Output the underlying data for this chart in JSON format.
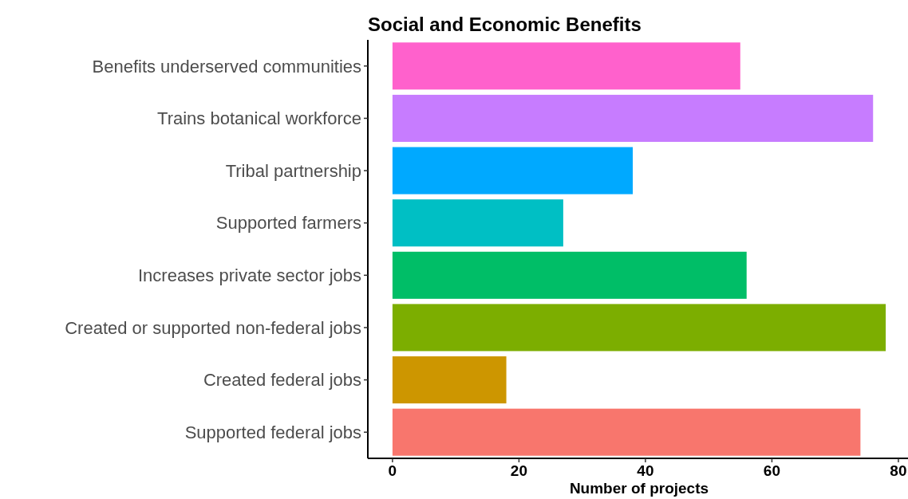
{
  "chart_data": {
    "type": "bar",
    "orientation": "horizontal",
    "title": "Social and Economic Benefits",
    "xlabel": "Number of projects",
    "categories": [
      "Benefits underserved communities",
      "Trains botanical workforce",
      "Tribal partnership",
      "Supported farmers",
      "Increases private sector jobs",
      "Created or supported non-federal jobs",
      "Created federal jobs",
      "Supported federal jobs"
    ],
    "values": [
      55,
      76,
      38,
      27,
      56,
      78,
      18,
      74
    ],
    "colors": [
      "#ff61cc",
      "#c77cff",
      "#00a9ff",
      "#00bfc4",
      "#00be67",
      "#7cae00",
      "#cd9600",
      "#f8766d"
    ],
    "xlim": [
      -3.9,
      81.9
    ],
    "xticks": [
      0,
      20,
      40,
      60,
      80
    ],
    "grid": false
  }
}
